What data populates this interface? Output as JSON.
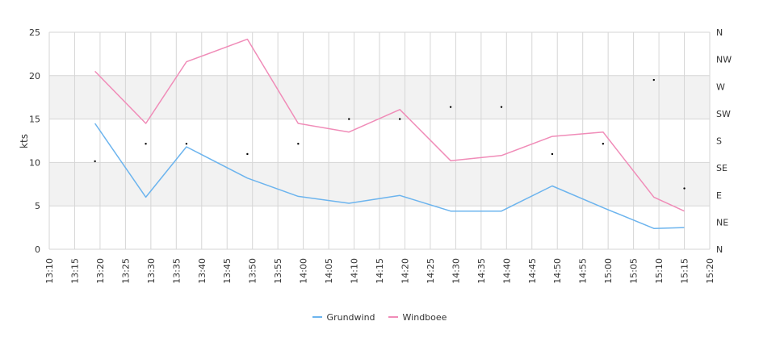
{
  "chart_data": {
    "type": "line",
    "title": "",
    "ylabel": "kts",
    "xlabel": "",
    "ylim": [
      0,
      25
    ],
    "y_ticks": [
      "0",
      "5",
      "10",
      "15",
      "20",
      "25"
    ],
    "y2_ticks": [
      "N",
      "NE",
      "E",
      "SE",
      "S",
      "SW",
      "W",
      "NW",
      "N"
    ],
    "x_ticks": [
      "13:10",
      "13:15",
      "13:20",
      "13:25",
      "13:30",
      "13:35",
      "13:40",
      "13:45",
      "13:50",
      "13:55",
      "14:00",
      "14:05",
      "14:10",
      "14:15",
      "14:20",
      "14:25",
      "14:30",
      "14:35",
      "14:40",
      "14:45",
      "14:50",
      "14:55",
      "15:00",
      "15:05",
      "15:10",
      "15:15",
      "15:20"
    ],
    "x_range": [
      "13:10",
      "15:20"
    ],
    "grid": true,
    "legend_position": "bottom",
    "series": [
      {
        "name": "Grundwind",
        "color": "#6cb4ee",
        "x": [
          "13:19",
          "13:29",
          "13:37",
          "13:49",
          "13:59",
          "14:09",
          "14:19",
          "14:29",
          "14:39",
          "14:49",
          "14:59",
          "15:09",
          "15:15"
        ],
        "values": [
          14.5,
          6.0,
          11.8,
          8.2,
          6.1,
          5.3,
          6.2,
          4.4,
          4.4,
          7.3,
          4.8,
          2.4,
          2.5
        ]
      },
      {
        "name": "Windboee",
        "color": "#f08cb8",
        "x": [
          "13:19",
          "13:29",
          "13:37",
          "13:49",
          "13:59",
          "14:09",
          "14:19",
          "14:29",
          "14:39",
          "14:49",
          "14:59",
          "15:09",
          "15:15"
        ],
        "values": [
          20.5,
          14.5,
          21.6,
          24.2,
          14.5,
          13.5,
          16.1,
          10.2,
          10.8,
          13.0,
          13.5,
          6.0,
          4.4
        ]
      }
    ],
    "direction_points": {
      "color": "#000000",
      "x": [
        "13:19",
        "13:29",
        "13:37",
        "13:49",
        "13:59",
        "14:09",
        "14:19",
        "14:29",
        "14:39",
        "14:49",
        "14:59",
        "15:09",
        "15:15"
      ],
      "values_deg": [
        146,
        175,
        175,
        158,
        175,
        216,
        216,
        236,
        236,
        158,
        175,
        281,
        101
      ]
    }
  }
}
